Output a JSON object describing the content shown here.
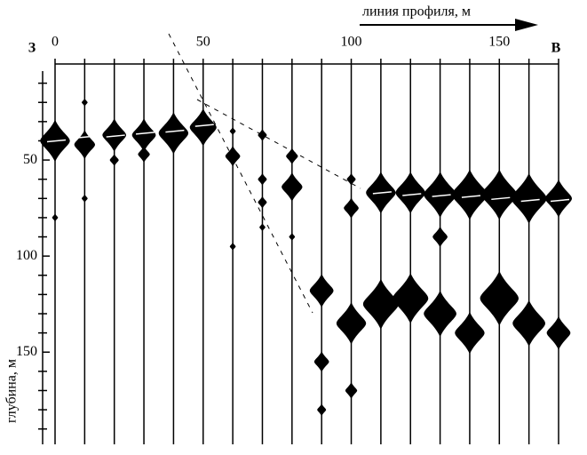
{
  "chart_data": {
    "type": "wiggle",
    "x_label": "линия профиля, м",
    "y_label": "глубина, м",
    "left_label": "З",
    "right_label": "В",
    "xlim": [
      0,
      170
    ],
    "xticks": [
      0,
      50,
      100,
      150
    ],
    "ylim": [
      0,
      198
    ],
    "yticks": [
      50,
      100,
      150
    ],
    "yminorticks": [
      10,
      20,
      30,
      40,
      60,
      70,
      80,
      90,
      110,
      120,
      130,
      140,
      160,
      170,
      180,
      190
    ],
    "color": "#000000",
    "traces": [
      0,
      10,
      20,
      30,
      40,
      50,
      60,
      70,
      80,
      90,
      100,
      110,
      120,
      130,
      140,
      150,
      160,
      170
    ],
    "horizon": [
      40,
      38,
      37.5,
      36,
      35,
      32,
      null,
      null,
      null,
      null,
      null,
      67,
      68,
      68.5,
      69,
      70,
      71,
      71
    ],
    "anomalies": [
      {
        "depths": [
          40,
          80
        ],
        "amplitudes": [
          5,
          1
        ]
      },
      {
        "depths": [
          20,
          42,
          70
        ],
        "amplitudes": [
          1,
          3.5,
          1
        ]
      },
      {
        "depths": [
          37,
          50
        ],
        "amplitudes": [
          4,
          1.5
        ]
      },
      {
        "depths": [
          37,
          47
        ],
        "amplitudes": [
          4,
          2
        ]
      },
      {
        "depths": [
          36
        ],
        "amplitudes": [
          5
        ]
      },
      {
        "depths": [
          33
        ],
        "amplitudes": [
          4.5
        ]
      },
      {
        "depths": [
          35,
          48,
          95
        ],
        "amplitudes": [
          1,
          2.5,
          1
        ]
      },
      {
        "depths": [
          37,
          60,
          72,
          85
        ],
        "amplitudes": [
          1.5,
          1.5,
          1.5,
          1
        ]
      },
      {
        "depths": [
          48,
          64,
          90
        ],
        "amplitudes": [
          2,
          3.5,
          1
        ]
      },
      {
        "depths": [
          118,
          155,
          180
        ],
        "amplitudes": [
          4,
          2.5,
          1.5
        ]
      },
      {
        "depths": [
          60,
          75,
          135,
          170
        ],
        "amplitudes": [
          1.5,
          2.5,
          5,
          2
        ]
      },
      {
        "depths": [
          67,
          125
        ],
        "amplitudes": [
          5,
          6
        ]
      },
      {
        "depths": [
          67,
          122
        ],
        "amplitudes": [
          5,
          6
        ]
      },
      {
        "depths": [
          68,
          90,
          130
        ],
        "amplitudes": [
          5.5,
          2.5,
          5.5
        ]
      },
      {
        "depths": [
          68,
          140
        ],
        "amplitudes": [
          6,
          5
        ]
      },
      {
        "depths": [
          68,
          122
        ],
        "amplitudes": [
          6,
          6.5
        ]
      },
      {
        "depths": [
          70,
          135
        ],
        "amplitudes": [
          6,
          5.5
        ]
      },
      {
        "depths": [
          70,
          140
        ],
        "amplitudes": [
          4.5,
          4
        ]
      }
    ]
  }
}
